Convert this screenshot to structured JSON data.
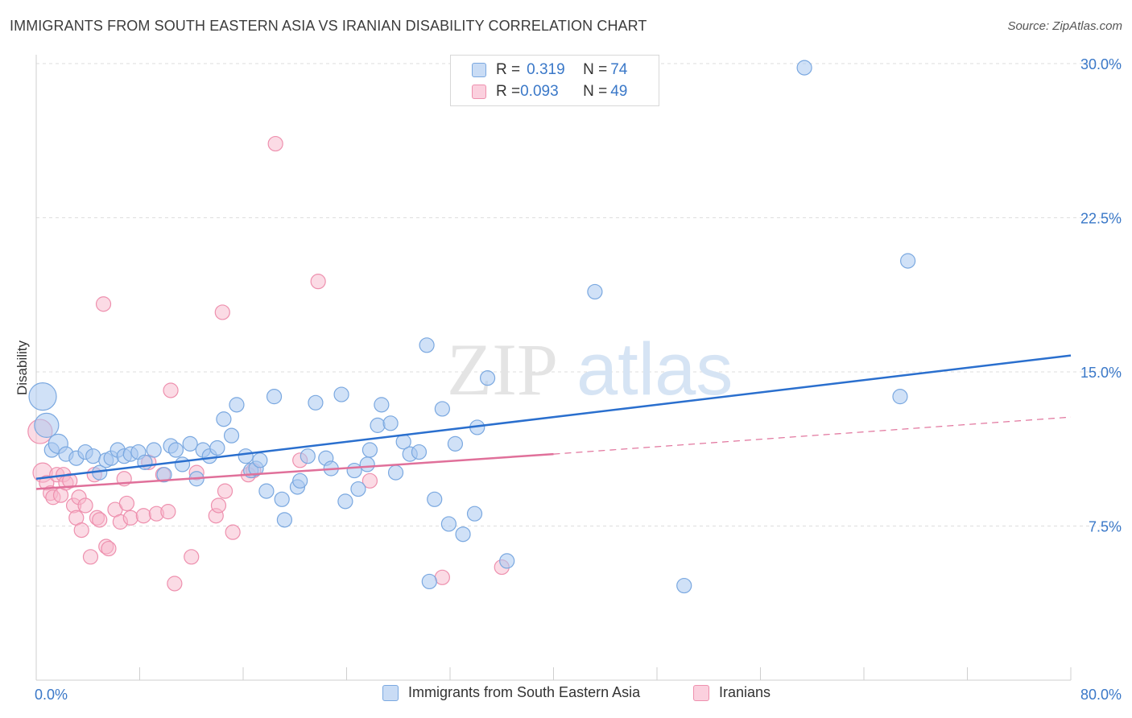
{
  "title": "IMMIGRANTS FROM SOUTH EASTERN ASIA VS IRANIAN DISABILITY CORRELATION CHART",
  "source": "Source: ZipAtlas.com",
  "watermark": {
    "zip": "ZIP",
    "atlas": "atlas"
  },
  "legend_top": [
    {
      "r_label": "R = ",
      "r_value": "0.319",
      "n_label": "N = ",
      "n_value": "74"
    },
    {
      "r_label": "R = ",
      "r_value": "0.093",
      "n_label": "N = ",
      "n_value": "49"
    }
  ],
  "legend_bottom": [
    "Immigrants from South Eastern Asia",
    "Iranians"
  ],
  "colors": {
    "blue_fill": "#aac8f0",
    "blue_stroke": "#7aa8e0",
    "blue_line": "#2a6fce",
    "pink_fill": "#f7b8cc",
    "pink_stroke": "#ee90ae",
    "pink_line": "#e0709a",
    "tick_label": "#3a78c8",
    "grid": "#dedede"
  },
  "chart_data": {
    "type": "scatter",
    "title": "IMMIGRANTS FROM SOUTH EASTERN ASIA VS IRANIAN DISABILITY CORRELATION CHART",
    "xlabel": "",
    "ylabel": "Disability",
    "xlim": [
      0,
      80
    ],
    "ylim": [
      0,
      31.5
    ],
    "x_tick_labels": [
      "0.0%",
      "80.0%"
    ],
    "y_ticks": [
      7.5,
      15.0,
      22.5,
      30.0
    ],
    "y_tick_labels": [
      "7.5%",
      "15.0%",
      "22.5%",
      "30.0%"
    ],
    "grid": "horizontal dashed",
    "legend_position": "top-center",
    "series": [
      {
        "name": "Immigrants from South Eastern Asia",
        "color": "#aac8f0",
        "r": 0.319,
        "n": 74,
        "trend": {
          "x": [
            0,
            80
          ],
          "y": [
            9.8,
            15.8
          ],
          "style": "solid"
        },
        "points": [
          [
            0.5,
            13.8,
            3
          ],
          [
            0.8,
            12.4,
            2
          ],
          [
            1.2,
            11.2,
            1
          ],
          [
            1.7,
            11.5,
            1.5
          ],
          [
            2.3,
            11.0,
            1
          ],
          [
            3.1,
            10.8,
            1
          ],
          [
            3.8,
            11.1,
            1
          ],
          [
            4.4,
            10.9,
            1
          ],
          [
            4.9,
            10.1,
            1
          ],
          [
            5.4,
            10.7,
            1
          ],
          [
            5.8,
            10.8,
            1
          ],
          [
            6.3,
            11.2,
            1
          ],
          [
            6.8,
            10.9,
            1
          ],
          [
            7.3,
            11.0,
            1
          ],
          [
            7.9,
            11.1,
            1
          ],
          [
            8.4,
            10.6,
            1
          ],
          [
            9.1,
            11.2,
            1
          ],
          [
            9.9,
            10.0,
            1
          ],
          [
            10.4,
            11.4,
            1
          ],
          [
            10.8,
            11.2,
            1
          ],
          [
            11.3,
            10.5,
            1
          ],
          [
            11.9,
            11.5,
            1
          ],
          [
            12.4,
            9.8,
            1
          ],
          [
            12.9,
            11.2,
            1
          ],
          [
            13.4,
            10.9,
            1
          ],
          [
            14.0,
            11.3,
            1
          ],
          [
            14.5,
            12.7,
            1
          ],
          [
            15.1,
            11.9,
            1
          ],
          [
            15.5,
            13.4,
            1
          ],
          [
            16.2,
            10.9,
            1
          ],
          [
            16.6,
            10.2,
            1
          ],
          [
            17.0,
            10.3,
            1
          ],
          [
            17.3,
            10.7,
            1
          ],
          [
            17.8,
            9.2,
            1
          ],
          [
            18.4,
            13.8,
            1
          ],
          [
            19.0,
            8.8,
            1
          ],
          [
            19.2,
            7.8,
            1
          ],
          [
            20.2,
            9.4,
            1
          ],
          [
            20.4,
            9.7,
            1
          ],
          [
            21.0,
            10.9,
            1
          ],
          [
            21.6,
            13.5,
            1
          ],
          [
            22.4,
            10.8,
            1
          ],
          [
            22.8,
            10.3,
            1
          ],
          [
            23.6,
            13.9,
            1
          ],
          [
            23.9,
            8.7,
            1
          ],
          [
            24.6,
            10.2,
            1
          ],
          [
            24.9,
            9.3,
            1
          ],
          [
            25.6,
            10.5,
            1
          ],
          [
            25.8,
            11.2,
            1
          ],
          [
            26.4,
            12.4,
            1
          ],
          [
            26.7,
            13.4,
            1
          ],
          [
            27.4,
            12.5,
            1
          ],
          [
            27.8,
            10.1,
            1
          ],
          [
            28.4,
            11.6,
            1
          ],
          [
            28.9,
            11.0,
            1
          ],
          [
            29.6,
            11.1,
            1
          ],
          [
            30.2,
            16.3,
            1
          ],
          [
            30.4,
            4.8,
            1
          ],
          [
            30.8,
            8.8,
            1
          ],
          [
            31.4,
            13.2,
            1
          ],
          [
            31.9,
            7.6,
            1
          ],
          [
            32.4,
            11.5,
            1
          ],
          [
            33.0,
            7.1,
            1
          ],
          [
            33.9,
            8.1,
            1
          ],
          [
            34.1,
            12.3,
            1
          ],
          [
            34.9,
            14.7,
            1
          ],
          [
            36.4,
            5.8,
            1
          ],
          [
            43.2,
            18.9,
            1
          ],
          [
            50.1,
            4.6,
            1
          ],
          [
            59.4,
            29.8,
            1
          ],
          [
            66.8,
            13.8,
            1
          ],
          [
            67.4,
            20.4,
            1
          ]
        ]
      },
      {
        "name": "Iranians",
        "color": "#f7b8cc",
        "r": 0.093,
        "n": 49,
        "trend": {
          "x": [
            0,
            40,
            80
          ],
          "y": [
            9.3,
            11.0,
            12.8
          ],
          "style": "solid to 40, dashed after"
        },
        "points": [
          [
            0.3,
            12.1,
            2
          ],
          [
            0.5,
            10.1,
            1.5
          ],
          [
            0.8,
            9.6,
            1
          ],
          [
            1.1,
            9.1,
            1
          ],
          [
            1.3,
            8.9,
            1
          ],
          [
            1.6,
            10.0,
            1
          ],
          [
            1.9,
            9.0,
            1
          ],
          [
            2.1,
            10.0,
            1
          ],
          [
            2.3,
            9.6,
            1
          ],
          [
            2.6,
            9.7,
            1
          ],
          [
            2.9,
            8.5,
            1
          ],
          [
            3.1,
            7.9,
            1
          ],
          [
            3.3,
            8.9,
            1
          ],
          [
            3.5,
            7.3,
            1
          ],
          [
            3.8,
            8.5,
            1
          ],
          [
            4.2,
            6.0,
            1
          ],
          [
            4.5,
            10.0,
            1
          ],
          [
            4.7,
            7.9,
            1
          ],
          [
            4.9,
            7.8,
            1
          ],
          [
            5.2,
            18.3,
            1
          ],
          [
            5.4,
            6.5,
            1
          ],
          [
            5.6,
            6.4,
            1
          ],
          [
            6.1,
            8.3,
            1
          ],
          [
            6.5,
            7.7,
            1
          ],
          [
            6.8,
            9.8,
            1
          ],
          [
            7.0,
            8.6,
            1
          ],
          [
            7.3,
            7.9,
            1
          ],
          [
            8.3,
            8.0,
            1
          ],
          [
            8.7,
            10.6,
            1
          ],
          [
            9.3,
            8.1,
            1
          ],
          [
            9.8,
            10.0,
            1
          ],
          [
            10.2,
            8.2,
            1
          ],
          [
            10.4,
            14.1,
            1
          ],
          [
            10.7,
            4.7,
            1
          ],
          [
            12.0,
            6.0,
            1
          ],
          [
            12.4,
            10.1,
            1
          ],
          [
            13.9,
            8.0,
            1
          ],
          [
            14.1,
            8.5,
            1
          ],
          [
            14.4,
            17.9,
            1
          ],
          [
            14.6,
            9.2,
            1
          ],
          [
            15.2,
            7.2,
            1
          ],
          [
            16.4,
            10.0,
            1
          ],
          [
            16.8,
            10.2,
            1
          ],
          [
            18.5,
            26.1,
            1
          ],
          [
            20.4,
            10.7,
            1
          ],
          [
            21.8,
            19.4,
            1
          ],
          [
            25.8,
            9.7,
            1
          ],
          [
            31.4,
            5.0,
            1
          ],
          [
            36.0,
            5.5,
            1
          ]
        ]
      }
    ]
  }
}
